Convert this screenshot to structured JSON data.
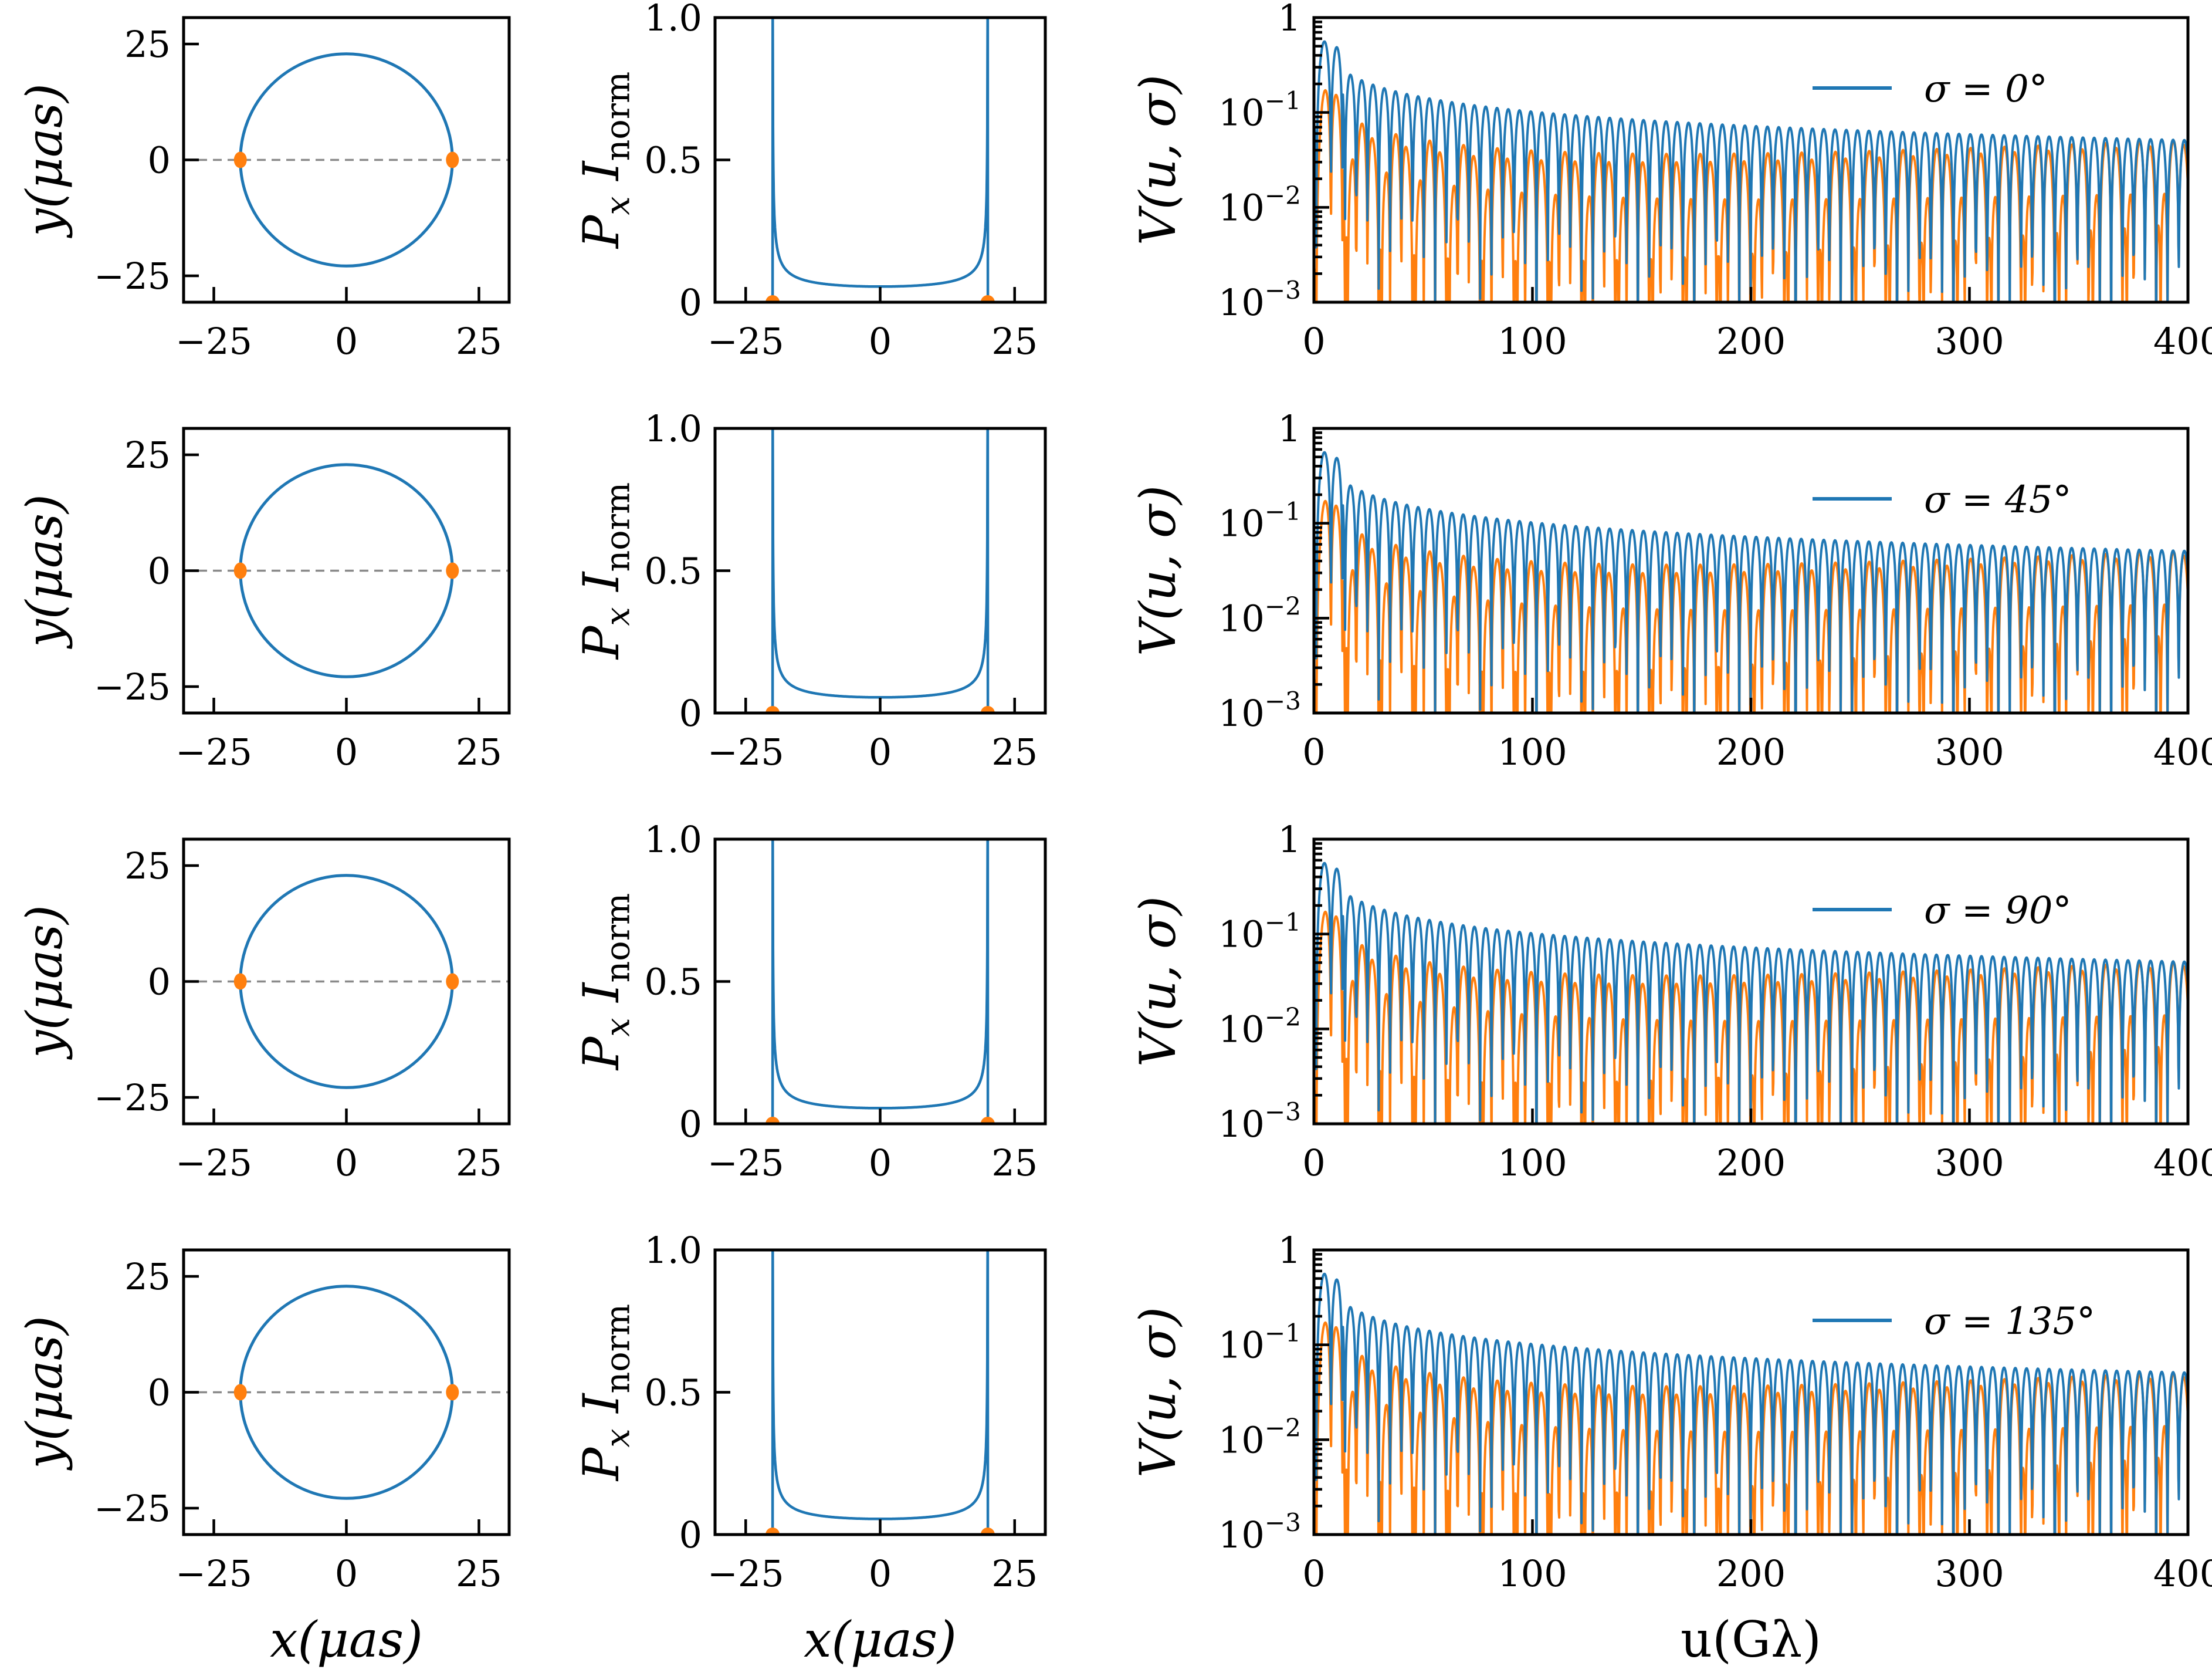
{
  "colors": {
    "blue": "#1f77b4",
    "orange": "#ff7f0e",
    "guide_gray": "#8a8a8a",
    "axis": "#000000",
    "background": "#ffffff"
  },
  "rows": [
    {
      "sigma_deg": 0,
      "legend_label": "σ = 0°"
    },
    {
      "sigma_deg": 45,
      "legend_label": "σ = 45°"
    },
    {
      "sigma_deg": 90,
      "legend_label": "σ = 90°"
    },
    {
      "sigma_deg": 135,
      "legend_label": "σ = 135°"
    }
  ],
  "columns": {
    "ring": {
      "ylabel": "y(μas)",
      "xlabel": "x(μas)",
      "ylabel_parts": [
        {
          "t": "y(μas)",
          "it": true
        }
      ],
      "xlabel_parts": [
        {
          "t": "x(μas)",
          "it": true
        }
      ],
      "xtick_labels": [
        "−25",
        "0",
        "25"
      ],
      "ytick_labels": [
        "25",
        "0",
        "−25"
      ]
    },
    "profile": {
      "ylabel": "Px Inorm",
      "xlabel": "x(μas)",
      "ylabel_parts": [
        {
          "t": "P",
          "it": true
        },
        {
          "t": "x",
          "it": true,
          "sub": true
        },
        {
          "t": " I",
          "it": true
        },
        {
          "t": "norm",
          "sub": true
        }
      ],
      "xlabel_parts": [
        {
          "t": "x(μas)",
          "it": true
        }
      ],
      "xtick_labels": [
        "−25",
        "0",
        "25"
      ],
      "ytick_labels": [
        "1.0",
        "0.5",
        "0"
      ]
    },
    "visibility": {
      "ylabel": "V(u, σ)",
      "xlabel": "u(Gλ)",
      "ylabel_parts": [
        {
          "t": "V",
          "it": true
        },
        {
          "t": "(u, σ)",
          "it": true
        }
      ],
      "xlabel_parts": [
        {
          "t": "u(Gλ)"
        }
      ],
      "xtick_labels": [
        "0",
        "100",
        "200",
        "300",
        "400"
      ],
      "ytick_labels": [
        {
          "base": "1",
          "exp": ""
        },
        {
          "base": "10",
          "exp": "−1"
        },
        {
          "base": "10",
          "exp": "−2"
        },
        {
          "base": "10",
          "exp": "−3"
        }
      ]
    }
  },
  "chart_data": [
    {
      "id": "ring-image",
      "type": "line",
      "rows_repeated": 4,
      "xlabel": "x(μas)",
      "ylabel": "y(μas)",
      "xlim": [
        -30.7,
        30.7
      ],
      "ylim": [
        -30.7,
        30.7
      ],
      "xticks": [
        -25,
        0,
        25
      ],
      "yticks": [
        25,
        0,
        -25
      ],
      "ring": {
        "center_uas": [
          0,
          0
        ],
        "radius_uas": 20,
        "color": "#1f77b4"
      },
      "markers": {
        "points_uas": [
          [
            -20,
            0
          ],
          [
            20,
            0
          ]
        ],
        "color": "#ff7f0e"
      },
      "guide_line": {
        "y_uas": 0,
        "style": "dashed",
        "color": "#8a8a8a"
      },
      "note": "thin ring of radius 20 μas; orange hotspots at (±20, 0); identical in all four rows"
    },
    {
      "id": "intensity-profile",
      "type": "line",
      "rows_repeated": 4,
      "xlabel": "x(μas)",
      "ylabel": "Px Inorm",
      "xlim": [
        -30.7,
        30.7
      ],
      "ylim": [
        0,
        1
      ],
      "xticks": [
        -25,
        0,
        25
      ],
      "yticks": [
        0,
        0.5,
        1.0
      ],
      "model": "I(x) = min(1, floor / sqrt(1 - (x/R)^2)) for |x| < R, else 0",
      "params": {
        "R_uas": 20,
        "floor": 0.055
      },
      "peak_x_uas": [
        -20,
        20
      ],
      "peak_value": 1.0,
      "center_value": 0.055,
      "markers": {
        "points": [
          [
            -20,
            0
          ],
          [
            20,
            0
          ]
        ],
        "color": "#ff7f0e"
      },
      "note": "line-of-sight projected ring profile, spikes clipped at 1.0; identical in all four rows"
    },
    {
      "id": "visibility-vs-baseline",
      "type": "line",
      "rows_repeated": 4,
      "xlabel": "u(Gλ)",
      "ylabel": "V(u, σ)",
      "xlim": [
        0,
        400
      ],
      "ylim": [
        0.001,
        1
      ],
      "yscale": "log",
      "xticks": [
        0,
        100,
        200,
        300,
        400
      ],
      "yticks": [
        1,
        0.1,
        0.01,
        0.001
      ],
      "series": [
        {
          "name": "total-intensity ring visibility",
          "color": "#1f77b4",
          "model": "V(u) = |J0(0.60923 u)|",
          "params": {
            "k_rad_per_Glambda": 0.60923,
            "ring_diameter_uas": 40,
            "oscillation_period_Glambda": 5.16
          }
        },
        {
          "name": "polarized visibility",
          "color": "#ff7f0e",
          "model": "Vp(u) = |J0(0.60923 u)| · (0.36 + 0.72 (u/400)^2) · |sin(2π u / 31)|",
          "params": {
            "k_rad_per_Glambda": 0.60923,
            "amp0": 0.36,
            "amp1": 0.72,
            "beat_period_Glambda": 31
          }
        }
      ],
      "legend": {
        "position": "upper-right",
        "line_color": "#1f77b4",
        "entries_by_row": [
          "σ = 0°",
          "σ = 45°",
          "σ = 90°",
          "σ = 135°"
        ]
      },
      "sampling": {
        "u_min": 0.05,
        "u_max": 400,
        "step": 0.2
      }
    }
  ]
}
